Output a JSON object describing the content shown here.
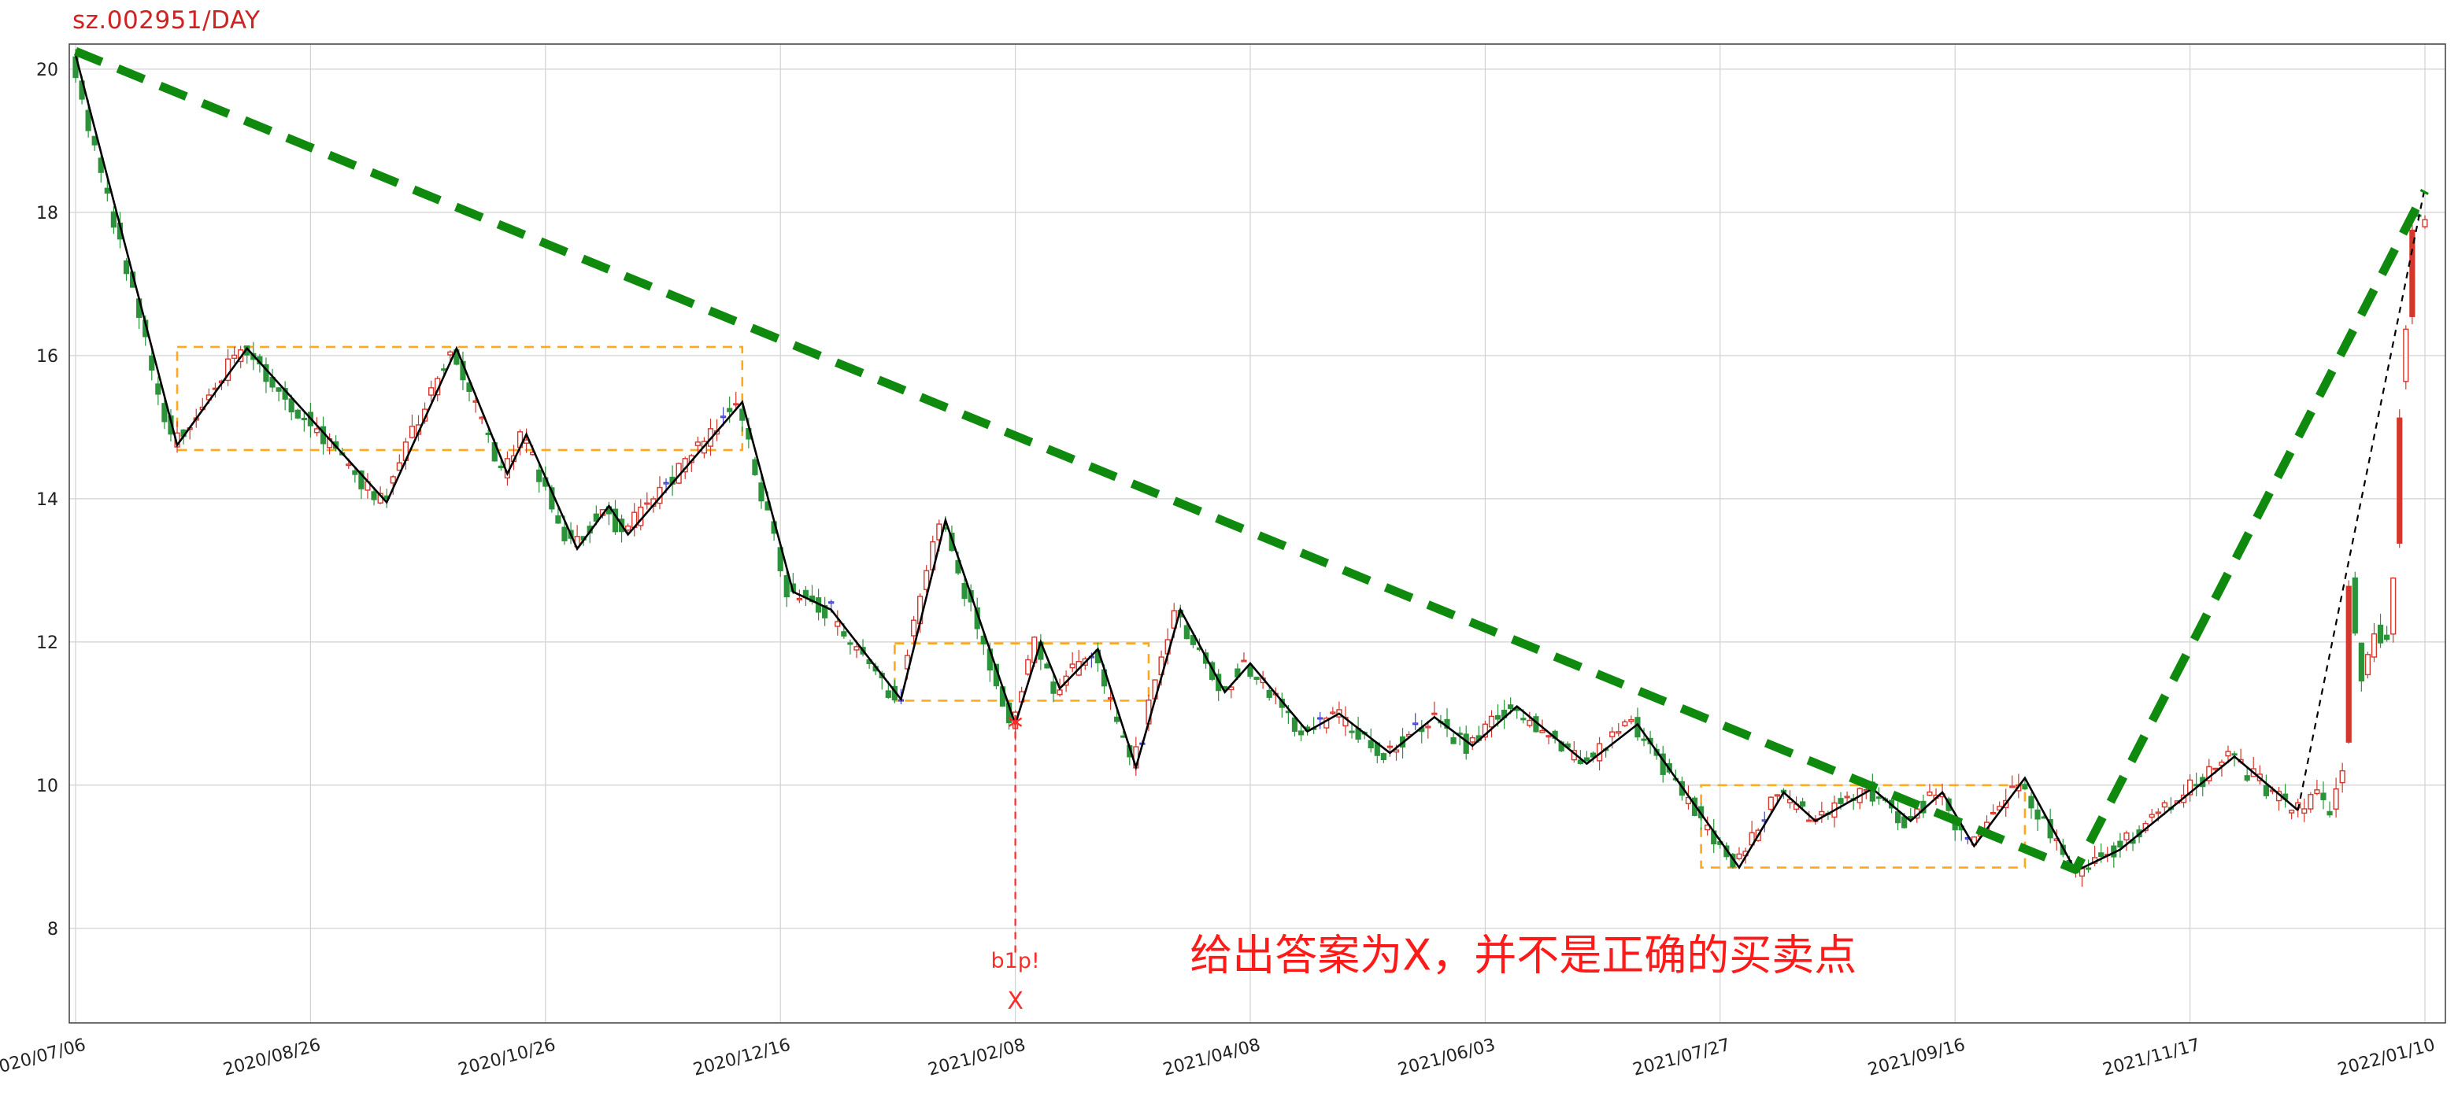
{
  "title": "sz.002951/DAY",
  "colors": {
    "up": "#d4372b",
    "down": "#2b9339",
    "alt": "#4040cc",
    "zigzag": "#000000",
    "trend": "#0f8a0f",
    "box": "#ffa81e",
    "event": "#ff2a2a",
    "annotation": "#ff1a1a",
    "grid": "#d2d2d2",
    "frame": "#4a4a4a",
    "tick_text": "#222222",
    "title_text": "#cf2222"
  },
  "chart_data": {
    "type": "candlestick",
    "title": "sz.002951/DAY",
    "xlabel": "",
    "ylabel": "",
    "grid": true,
    "n_bars": 371,
    "ylim": [
      6.68,
      20.35
    ],
    "yticks": [
      8,
      10,
      12,
      14,
      16,
      18,
      20
    ],
    "xticks": [
      [
        0,
        "2020/07/06"
      ],
      [
        37,
        "2020/08/26"
      ],
      [
        74,
        "2020/10/26"
      ],
      [
        111,
        "2020/12/16"
      ],
      [
        148,
        "2021/02/08"
      ],
      [
        185,
        "2021/04/08"
      ],
      [
        222,
        "2021/06/03"
      ],
      [
        259,
        "2021/07/27"
      ],
      [
        296,
        "2021/09/16"
      ],
      [
        333,
        "2021/11/17"
      ],
      [
        370,
        "2022/01/10"
      ]
    ],
    "zigzag_pivots": [
      [
        0,
        20.2
      ],
      [
        16,
        14.75
      ],
      [
        27,
        16.1
      ],
      [
        49,
        13.95
      ],
      [
        60,
        16.1
      ],
      [
        68,
        14.35
      ],
      [
        71,
        14.9
      ],
      [
        79,
        13.3
      ],
      [
        84,
        13.9
      ],
      [
        87,
        13.5
      ],
      [
        105,
        15.35
      ],
      [
        113,
        12.7
      ],
      [
        119,
        12.45
      ],
      [
        130,
        11.2
      ],
      [
        137,
        13.7
      ],
      [
        148,
        10.85
      ],
      [
        152,
        12.0
      ],
      [
        155,
        11.35
      ],
      [
        161,
        11.9
      ],
      [
        167,
        10.25
      ],
      [
        174,
        12.45
      ],
      [
        181,
        11.3
      ],
      [
        185,
        11.7
      ],
      [
        194,
        10.75
      ],
      [
        199,
        11.0
      ],
      [
        207,
        10.45
      ],
      [
        214,
        10.95
      ],
      [
        220,
        10.55
      ],
      [
        227,
        11.1
      ],
      [
        238,
        10.3
      ],
      [
        246,
        10.85
      ],
      [
        262,
        8.85
      ],
      [
        269,
        9.9
      ],
      [
        274,
        9.5
      ],
      [
        283,
        9.95
      ],
      [
        289,
        9.5
      ],
      [
        294,
        9.9
      ],
      [
        299,
        9.15
      ],
      [
        307,
        10.1
      ],
      [
        315,
        8.8
      ],
      [
        322,
        9.1
      ],
      [
        340,
        10.4
      ],
      [
        350,
        9.65
      ]
    ],
    "tail_path": [
      [
        354,
        9.9
      ],
      [
        356,
        9.6
      ],
      [
        358,
        10.3
      ],
      [
        359,
        13.1
      ],
      [
        360,
        12.0
      ],
      [
        361,
        11.5
      ],
      [
        363,
        12.2
      ],
      [
        365,
        11.9
      ],
      [
        366,
        13.0
      ],
      [
        367,
        15.4
      ],
      [
        368,
        16.4
      ],
      [
        369,
        18.0
      ],
      [
        370,
        17.9
      ]
    ],
    "tail_line": [
      [
        350,
        9.65
      ],
      [
        370,
        18.35
      ]
    ],
    "trend_line": [
      [
        0,
        20.25
      ],
      [
        315,
        8.82
      ],
      [
        370,
        18.3
      ]
    ],
    "boxes": [
      {
        "x0": 16,
        "x1": 105,
        "y0": 14.68,
        "y1": 16.12
      },
      {
        "x0": 129,
        "x1": 169,
        "y0": 11.18,
        "y1": 11.98
      },
      {
        "x0": 256,
        "x1": 307,
        "y0": 8.85,
        "y1": 10.0
      }
    ],
    "event": {
      "index": 148,
      "line_top": 10.75,
      "line_bottom": 7.58,
      "marker_y": 10.88,
      "label": "b1p!",
      "label_y": 7.45,
      "mark": "X",
      "mark_y": 6.88
    },
    "note": {
      "text": "给出答案为X，并不是正确的买卖点",
      "index": 228,
      "y": 7.42
    },
    "candle_seed": 20220110,
    "candle_noise": 0.24
  }
}
